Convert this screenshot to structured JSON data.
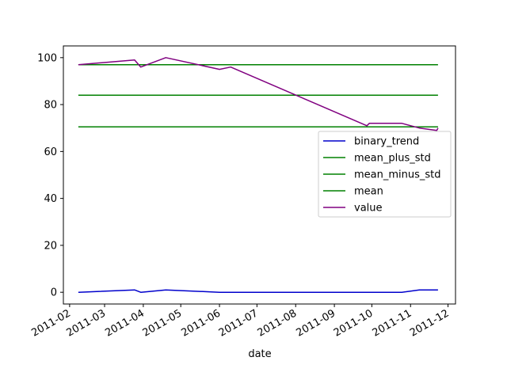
{
  "chart_data": {
    "type": "line",
    "xlabel": "date",
    "ylabel": "",
    "title": "",
    "xlim": [
      "2011-01-27",
      "2011-12-07"
    ],
    "ylim": [
      -5,
      105
    ],
    "x_ticks": [
      "2011-02",
      "2011-03",
      "2011-04",
      "2011-05",
      "2011-06",
      "2011-07",
      "2011-08",
      "2011-09",
      "2011-10",
      "2011-11",
      "2011-12"
    ],
    "y_ticks": [
      0,
      20,
      40,
      60,
      80,
      100
    ],
    "legend_position": "center-right",
    "grid": false,
    "series": [
      {
        "name": "binary_trend",
        "color": "#0000cc",
        "x": [
          "2011-02-08",
          "2011-03-25",
          "2011-03-30",
          "2011-04-19",
          "2011-06-01",
          "2011-06-10",
          "2011-09-27",
          "2011-09-29",
          "2011-10-25",
          "2011-11-08",
          "2011-11-23"
        ],
        "values": [
          0,
          1,
          0,
          1,
          0,
          0,
          0,
          0,
          0,
          1,
          1
        ]
      },
      {
        "name": "mean_plus_std",
        "color": "#008000",
        "x": [
          "2011-02-08",
          "2011-11-23"
        ],
        "values": [
          97,
          97
        ]
      },
      {
        "name": "mean_minus_std",
        "color": "#008000",
        "x": [
          "2011-02-08",
          "2011-11-23"
        ],
        "values": [
          70.5,
          70.5
        ]
      },
      {
        "name": "mean",
        "color": "#008000",
        "x": [
          "2011-02-08",
          "2011-11-23"
        ],
        "values": [
          84,
          84
        ]
      },
      {
        "name": "value",
        "color": "#800080",
        "x": [
          "2011-02-08",
          "2011-03-25",
          "2011-03-30",
          "2011-04-19",
          "2011-06-01",
          "2011-06-10",
          "2011-09-27",
          "2011-09-29",
          "2011-10-25",
          "2011-11-08",
          "2011-11-22",
          "2011-11-23"
        ],
        "values": [
          97,
          99,
          96,
          100,
          95,
          96,
          71,
          72,
          72,
          70,
          69,
          70
        ]
      }
    ]
  }
}
